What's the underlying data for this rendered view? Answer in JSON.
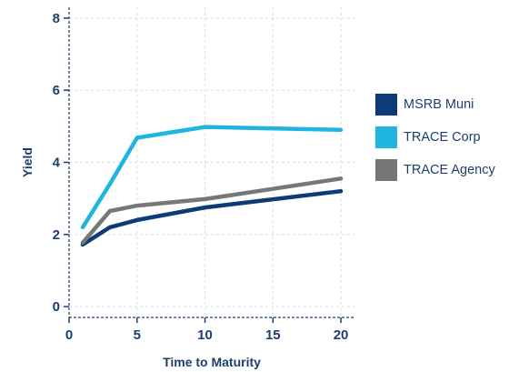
{
  "chart_data": {
    "type": "line",
    "title": "",
    "xlabel": "Time to Maturity",
    "ylabel": "Yield",
    "xlim": [
      0,
      21
    ],
    "ylim": [
      -0.3,
      8.3
    ],
    "xticks": [
      0,
      5,
      10,
      15,
      20
    ],
    "yticks": [
      0,
      2,
      4,
      6,
      8
    ],
    "grid": true,
    "legend_position": "right",
    "series": [
      {
        "name": "MSRB Muni",
        "color": "#0d3b7a",
        "x": [
          1,
          3,
          5,
          10,
          20
        ],
        "y": [
          1.72,
          2.2,
          2.4,
          2.75,
          3.2
        ]
      },
      {
        "name": "TRACE Corp",
        "color": "#1fb5e0",
        "x": [
          1,
          3,
          5,
          10,
          20
        ],
        "y": [
          2.2,
          3.4,
          4.68,
          4.98,
          4.9
        ]
      },
      {
        "name": "TRACE Agency",
        "color": "#777777",
        "x": [
          1,
          3,
          5,
          10,
          20
        ],
        "y": [
          1.77,
          2.65,
          2.8,
          2.98,
          3.55
        ]
      }
    ]
  }
}
